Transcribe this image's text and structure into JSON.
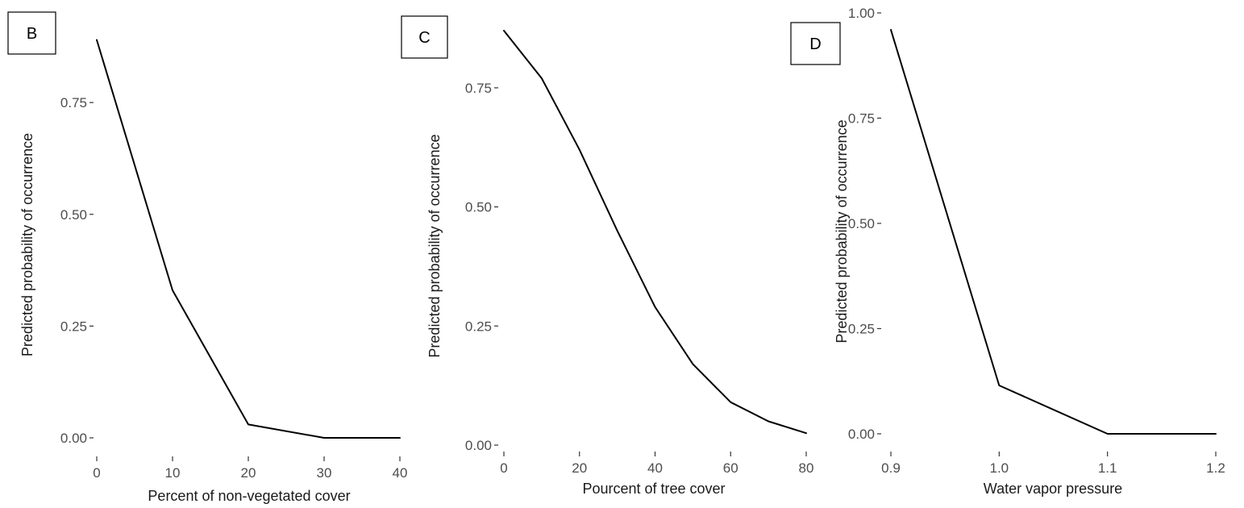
{
  "chart_data": [
    {
      "type": "line",
      "panel_label": "B",
      "xlabel": "Percent of non-vegetated cover",
      "ylabel": "Predicted probability of occurrence",
      "xlim": [
        0,
        40
      ],
      "ylim": [
        0,
        0.9
      ],
      "x_ticks": [
        0,
        10,
        20,
        30,
        40
      ],
      "x_tick_labels": [
        "0",
        "10",
        "20",
        "30",
        "40"
      ],
      "y_ticks": [
        0,
        0.25,
        0.5,
        0.75
      ],
      "y_tick_labels": [
        "0.00",
        "0.25",
        "0.50",
        "0.75"
      ],
      "grid": false,
      "series": [
        {
          "x": [
            0,
            10,
            20,
            30,
            40
          ],
          "values": [
            0.89,
            0.33,
            0.03,
            0.0,
            0.0
          ]
        }
      ]
    },
    {
      "type": "line",
      "panel_label": "C",
      "xlabel": "Pourcent of tree cover",
      "ylabel": "Predicted probability of occurrence",
      "xlim": [
        0,
        80
      ],
      "ylim": [
        0,
        0.87
      ],
      "x_ticks": [
        0,
        20,
        40,
        60,
        80
      ],
      "x_tick_labels": [
        "0",
        "20",
        "40",
        "60",
        "80"
      ],
      "y_ticks": [
        0,
        0.25,
        0.5,
        0.75
      ],
      "y_tick_labels": [
        "0.00",
        "0.25",
        "0.50",
        "0.75"
      ],
      "grid": false,
      "series": [
        {
          "x": [
            0,
            10,
            20,
            30,
            40,
            50,
            60,
            70,
            80
          ],
          "values": [
            0.87,
            0.77,
            0.62,
            0.45,
            0.29,
            0.17,
            0.09,
            0.05,
            0.025
          ]
        }
      ]
    },
    {
      "type": "line",
      "panel_label": "D",
      "xlabel": "Water vapor pressure",
      "ylabel": "Predicted probability of occurrence",
      "xlim": [
        0.9,
        1.2
      ],
      "ylim": [
        0,
        1.0
      ],
      "x_ticks": [
        0.9,
        1.0,
        1.1,
        1.2
      ],
      "x_tick_labels": [
        "0.9",
        "1.0",
        "1.1",
        "1.2"
      ],
      "y_ticks": [
        0,
        0.25,
        0.5,
        0.75,
        1.0
      ],
      "y_tick_labels": [
        "0.00",
        "0.25",
        "0.50",
        "0.75",
        "1.00"
      ],
      "grid": false,
      "series": [
        {
          "x": [
            0.9,
            1.0,
            1.1,
            1.2
          ],
          "values": [
            0.96,
            0.115,
            0.0,
            0.0
          ]
        }
      ]
    }
  ],
  "colors": {
    "line": "#000000",
    "tick_text": "#4d4d4d",
    "axis_title": "#1a1a1a"
  }
}
